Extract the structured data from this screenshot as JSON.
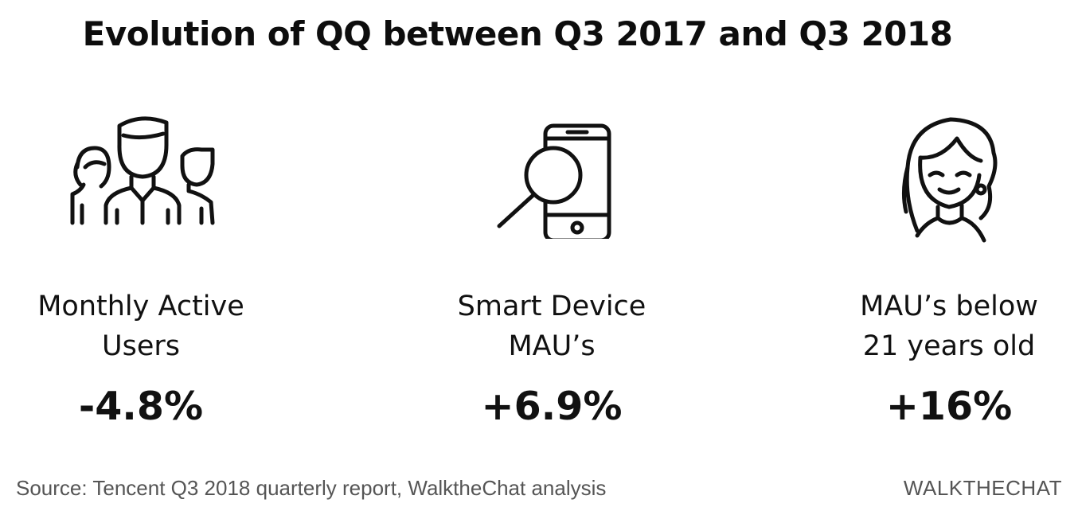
{
  "title": "Evolution of QQ between Q3 2017 and Q3 2018",
  "metrics": [
    {
      "icon": "users-group-icon",
      "label_line1": "Monthly Active",
      "label_line2": "Users",
      "value": "-4.8%"
    },
    {
      "icon": "phone-magnifier-icon",
      "label_line1": "Smart Device",
      "label_line2": "MAU’s",
      "value": "+6.9%"
    },
    {
      "icon": "young-woman-icon",
      "label_line1": "MAU’s below",
      "label_line2": "21 years old",
      "value": "+16%"
    }
  ],
  "footer": {
    "source": "Source: Tencent Q3 2018 quarterly report, WalktheChat analysis",
    "brand": "WALKTHECHAT"
  },
  "colors": {
    "text": "#111111",
    "footer_text": "#555555",
    "background": "#ffffff"
  }
}
